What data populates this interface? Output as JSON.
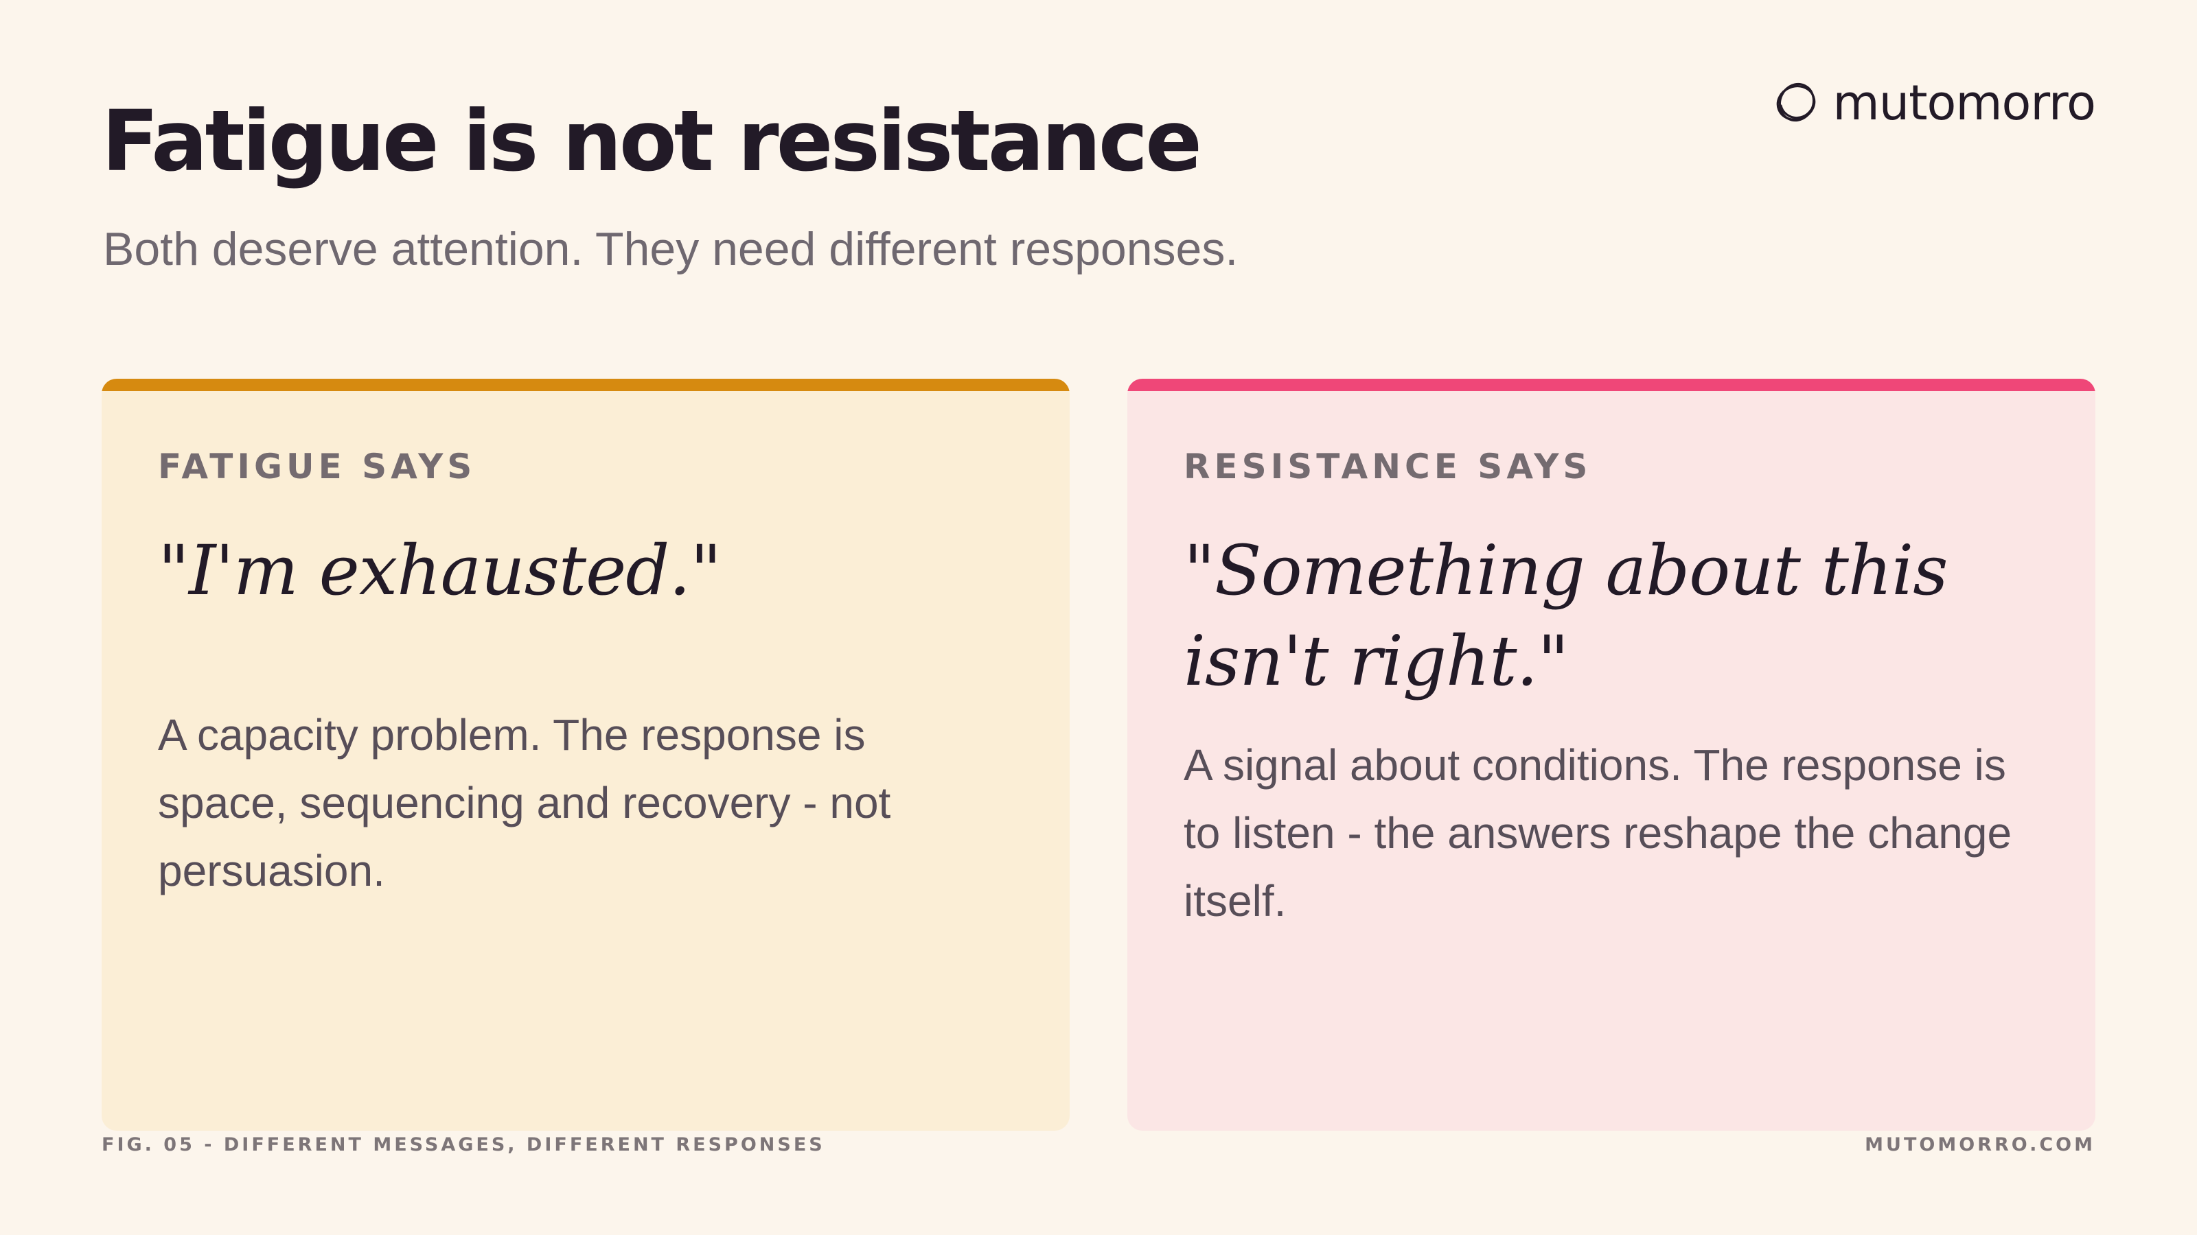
{
  "header": {
    "title": "Fatigue is not resistance",
    "subtitle": "Both deserve attention. They need different responses."
  },
  "logo": {
    "icon": "swirl-circle-icon",
    "text": "mutomorro"
  },
  "cards": [
    {
      "accent_color": "#d68a10",
      "background_color": "#fbeed6",
      "label": "FATIGUE SAYS",
      "quote": "\"I'm exhausted.\"",
      "body": "A capacity problem. The response is space, sequencing and recovery - not persuasion."
    },
    {
      "accent_color": "#ef4778",
      "background_color": "#fbe6e5",
      "label": "RESISTANCE SAYS",
      "quote": "\"Something about this isn't right.\"",
      "body": "A signal about conditions. The response is to listen - the answers reshape the change itself."
    }
  ],
  "footer": {
    "caption": "FIG. 05 - DIFFERENT MESSAGES, DIFFERENT RESPONSES",
    "site": "MUTOMORRO.COM"
  }
}
